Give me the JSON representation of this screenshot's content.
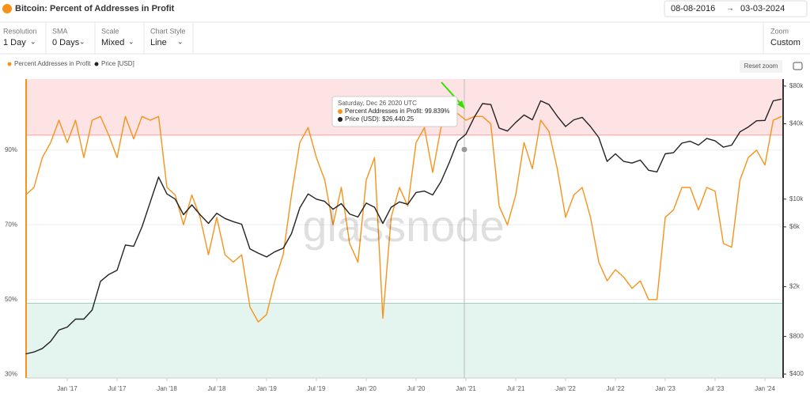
{
  "header": {
    "title": "Bitcoin: Percent of Addresses in Profit",
    "date_from": "08-08-2016",
    "date_to": "03-03-2024"
  },
  "controls": [
    {
      "label": "Resolution",
      "value": "1 Day"
    },
    {
      "label": "SMA",
      "value": "0 Days"
    },
    {
      "label": "Scale",
      "value": "Mixed"
    },
    {
      "label": "Chart Style",
      "value": "Line"
    }
  ],
  "zoom": {
    "label": "Zoom",
    "value": "Custom"
  },
  "reset_zoom": "Reset zoom",
  "watermark": "glassnode",
  "tooltip": {
    "date": "Saturday, Dec 26 2020 UTC",
    "rows": [
      "Percent Addresses in Profit: 99.839%",
      "Price (USD): $26,440.25"
    ]
  },
  "chart_data": {
    "type": "line",
    "legend": "top-left",
    "grid": true,
    "categories": [
      null,
      null,
      null,
      null,
      null,
      "Jan '17",
      null,
      null,
      null,
      null,
      null,
      "Jul '17",
      null,
      null,
      null,
      null,
      null,
      "Jan '18",
      null,
      null,
      null,
      null,
      null,
      "Jul '18",
      null,
      null,
      null,
      null,
      null,
      "Jan '19",
      null,
      null,
      null,
      null,
      null,
      "Jul '19",
      null,
      null,
      null,
      null,
      null,
      "Jan '20",
      null,
      null,
      null,
      null,
      null,
      "Jul '20",
      null,
      null,
      null,
      null,
      null,
      "Jan '21",
      null,
      null,
      null,
      null,
      null,
      "Jul '21",
      null,
      null,
      null,
      null,
      null,
      "Jan '22",
      null,
      null,
      null,
      null,
      null,
      "Jul '22",
      null,
      null,
      null,
      null,
      null,
      "Jan '23",
      null,
      null,
      null,
      null,
      null,
      "Jul '23",
      null,
      null,
      null,
      null,
      null,
      "Jan '24",
      null,
      null
    ],
    "ylim": [
      29,
      109
    ],
    "yticks": [
      {
        "value": 30,
        "label": "30%"
      },
      {
        "value": 50,
        "label": "50%"
      },
      {
        "value": 70,
        "label": "70%"
      },
      {
        "value": 90,
        "label": "90%"
      }
    ],
    "y2lim": [
      372,
      91000
    ],
    "y2scale": "log",
    "y2ticks": [
      {
        "value": 400,
        "label": "$400"
      },
      {
        "value": 800,
        "label": "$800"
      },
      {
        "value": 2000,
        "label": "$2k"
      },
      {
        "value": 6000,
        "label": "$6k"
      },
      {
        "value": 10000,
        "label": "$10k"
      },
      {
        "value": 40000,
        "label": "$40k"
      },
      {
        "value": 80000,
        "label": "$80k"
      }
    ],
    "zones": [
      {
        "from": 94,
        "to": 109,
        "color": "#fde3e3"
      },
      {
        "from": 29,
        "to": 49,
        "color": "#e3f5ee"
      }
    ],
    "series": [
      {
        "name": "Percent Addresses in Profit",
        "color": "#f7931a",
        "values": [
          78,
          80,
          88,
          92,
          98,
          92,
          98,
          88,
          98,
          99,
          94,
          88,
          99,
          93,
          99,
          98,
          99,
          80,
          78,
          70,
          78,
          72,
          62,
          72,
          62,
          60,
          62,
          48,
          44,
          46,
          55,
          62,
          78,
          92,
          96,
          88,
          82,
          70,
          80,
          65,
          60,
          82,
          88,
          45,
          72,
          80,
          75,
          92,
          96,
          84,
          96,
          99,
          99.8,
          98,
          99,
          99,
          97,
          75,
          70,
          78,
          92,
          85,
          98,
          95,
          85,
          72,
          78,
          80,
          72,
          60,
          55,
          58,
          56,
          53,
          55,
          50,
          50,
          72,
          74,
          80,
          80,
          74,
          80,
          79,
          65,
          64,
          82,
          88,
          90,
          86,
          98,
          99
        ]
      },
      {
        "name": "Price [USD]",
        "color": "#222222",
        "axis": "y2",
        "values": [
          580,
          600,
          640,
          730,
          900,
          950,
          1100,
          1100,
          1300,
          2200,
          2500,
          2700,
          4300,
          4200,
          6000,
          9500,
          15000,
          11000,
          10000,
          7500,
          9000,
          7500,
          6400,
          7700,
          7000,
          6600,
          6300,
          4000,
          3700,
          3450,
          3800,
          4050,
          5300,
          8500,
          11000,
          10000,
          9600,
          8300,
          9200,
          7600,
          7200,
          9300,
          8600,
          6400,
          8600,
          9500,
          9100,
          11300,
          11600,
          10800,
          13800,
          19600,
          29000,
          33000,
          45000,
          58000,
          57000,
          37000,
          35000,
          41000,
          47000,
          43000,
          61000,
          57000,
          46000,
          38000,
          43000,
          45000,
          38000,
          31000,
          20000,
          23000,
          20000,
          19400,
          20500,
          17000,
          16500,
          23000,
          23500,
          28000,
          29000,
          27000,
          30500,
          29200,
          26000,
          27000,
          34500,
          37700,
          42300,
          42500,
          61000,
          63000
        ]
      }
    ]
  }
}
